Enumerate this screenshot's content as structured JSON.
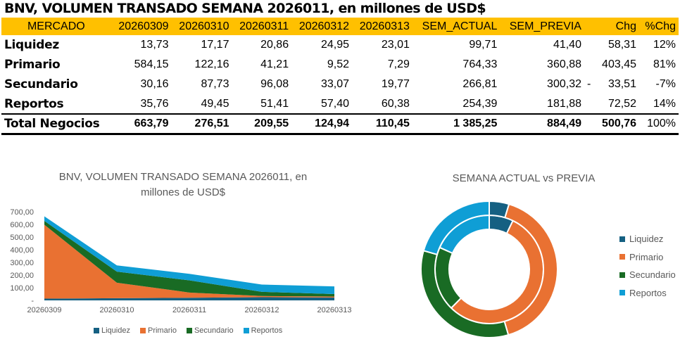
{
  "title": "BNV, VOLUMEN TRANSADO SEMANA 2026011, en millones de USD$",
  "table": {
    "headers": [
      "MERCADO",
      "20260309",
      "20260310",
      "20260311",
      "20260312",
      "20260313",
      "SEM_ACTUAL",
      "SEM_PREVIA",
      "Chg",
      "%Chg"
    ],
    "rows": [
      {
        "label": "Liquidez",
        "values": [
          "13,73",
          "17,17",
          "20,86",
          "24,95",
          "23,01",
          "99,71",
          "41,40"
        ],
        "chg_sign": "",
        "chg": "58,31",
        "pct": "12%"
      },
      {
        "label": "Primario",
        "values": [
          "584,15",
          "122,16",
          "41,21",
          "9,52",
          "7,29",
          "764,33",
          "360,88"
        ],
        "chg_sign": "",
        "chg": "403,45",
        "pct": "81%"
      },
      {
        "label": "Secundario",
        "values": [
          "30,16",
          "87,73",
          "96,08",
          "33,07",
          "19,77",
          "266,81",
          "300,32"
        ],
        "chg_sign": "-",
        "chg": "33,51",
        "pct": "-7%"
      },
      {
        "label": "Reportos",
        "values": [
          "35,76",
          "49,45",
          "51,41",
          "57,40",
          "60,38",
          "254,39",
          "181,88"
        ],
        "chg_sign": "",
        "chg": "72,52",
        "pct": "14%"
      }
    ],
    "total": {
      "label": "Total Negocios",
      "values": [
        "663,79",
        "276,51",
        "209,55",
        "124,94",
        "110,45",
        "1 385,25",
        "884,49"
      ],
      "chg_sign": "",
      "chg": "500,76",
      "pct": "100%"
    }
  },
  "colors": {
    "header_bg": "#FFC000",
    "Liquidez": "#156082",
    "Primario": "#E97132",
    "Secundario": "#196B24",
    "Reportos": "#0F9ED5"
  },
  "chart_data": [
    {
      "type": "area",
      "stacked": true,
      "title": "BNV, VOLUMEN TRANSADO SEMANA 2026011, en millones de USD$",
      "categories": [
        "20260309",
        "20260310",
        "20260311",
        "20260312",
        "20260313"
      ],
      "series": [
        {
          "name": "Liquidez",
          "values": [
            13.73,
            17.17,
            20.86,
            24.95,
            23.01
          ]
        },
        {
          "name": "Primario",
          "values": [
            584.15,
            122.16,
            41.21,
            9.52,
            7.29
          ]
        },
        {
          "name": "Secundario",
          "values": [
            30.16,
            87.73,
            96.08,
            33.07,
            19.77
          ]
        },
        {
          "name": "Reportos",
          "values": [
            35.76,
            49.45,
            51.41,
            57.4,
            60.38
          ]
        }
      ],
      "ylim": [
        0,
        700
      ],
      "yticks": [
        "-",
        "100,00",
        "200,00",
        "300,00",
        "400,00",
        "500,00",
        "600,00",
        "700,00"
      ],
      "grid": false,
      "legend": "bottom"
    },
    {
      "type": "pie",
      "donut": true,
      "title": "SEMANA ACTUAL vs PREVIA",
      "categories": [
        "Liquidez",
        "Primario",
        "Secundario",
        "Reportos"
      ],
      "series": [
        {
          "name": "SEM_ACTUAL",
          "ring": "inner",
          "values": [
            99.71,
            764.33,
            266.81,
            254.39
          ]
        },
        {
          "name": "SEM_PREVIA",
          "ring": "outer",
          "values": [
            41.4,
            360.88,
            300.32,
            181.88
          ]
        }
      ],
      "legend": "right"
    }
  ]
}
